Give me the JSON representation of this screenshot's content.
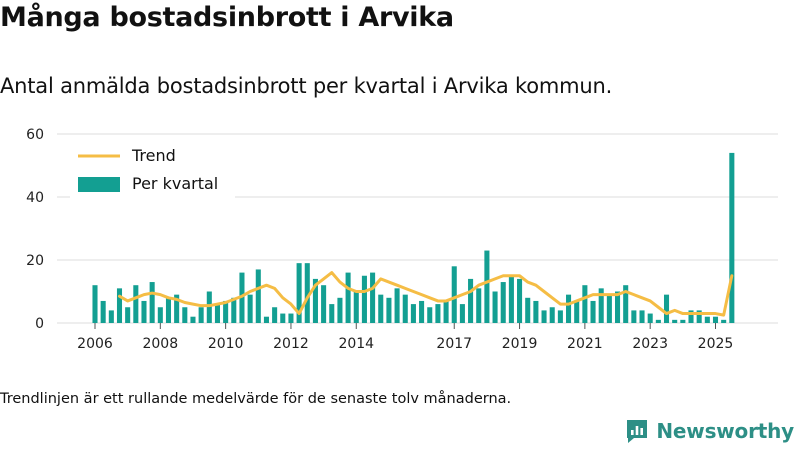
{
  "title": "Många bostadsinbrott i Arvika",
  "subtitle": "Antal anmälda bostadsinbrott per kvartal i Arvika kommun.",
  "note": "Trendlinjen är ett rullande medelvärde för de senaste tolv månaderna.",
  "brand": "Newsworthy",
  "colors": {
    "bar": "#139f92",
    "trend": "#f5bd45",
    "grid": "#dddddd",
    "brand": "#2d8f86"
  },
  "chart_data": {
    "type": "bar",
    "title": "Antal anmälda bostadsinbrott per kvartal i Arvika kommun.",
    "xlabel": "",
    "ylabel": "",
    "ylim": [
      0,
      60
    ],
    "yticks": [
      0,
      20,
      40,
      60
    ],
    "xticks": [
      "2006",
      "2008",
      "2010",
      "2012",
      "2014",
      "2017",
      "2019",
      "2021",
      "2023",
      "2025"
    ],
    "legend": {
      "position": "top-left",
      "entries": [
        "Trend",
        "Per kvartal"
      ]
    },
    "x_start": 2006.0,
    "step": 0.25,
    "series": [
      {
        "name": "Per kvartal",
        "type": "bar",
        "values": [
          12,
          7,
          4,
          11,
          5,
          12,
          7,
          13,
          5,
          8,
          9,
          5,
          2,
          5,
          10,
          6,
          7,
          8,
          16,
          9,
          17,
          2,
          5,
          3,
          3,
          19,
          19,
          14,
          12,
          6,
          8,
          16,
          10,
          15,
          16,
          9,
          8,
          11,
          9,
          6,
          7,
          5,
          6,
          7,
          18,
          6,
          14,
          11,
          23,
          10,
          13,
          15,
          14,
          8,
          7,
          4,
          5,
          4,
          9,
          7,
          12,
          7,
          11,
          9,
          10,
          12,
          4,
          4,
          3,
          1,
          9,
          1,
          1,
          4,
          4,
          2,
          2,
          1,
          54
        ]
      },
      {
        "name": "Trend",
        "type": "line",
        "values": [
          null,
          null,
          null,
          8.5,
          7,
          8,
          9,
          9.5,
          9,
          8,
          7.5,
          6.5,
          6,
          5.5,
          5.5,
          6,
          6.5,
          7.5,
          8.5,
          10,
          11,
          12,
          11,
          8,
          6,
          3,
          8,
          12,
          14,
          16,
          13,
          11,
          10,
          10,
          11,
          14,
          13,
          12,
          11,
          10,
          9,
          8,
          7,
          7,
          8,
          9,
          10,
          12,
          13,
          14,
          15,
          15,
          15,
          13,
          12,
          10,
          8,
          6,
          6,
          7,
          8,
          9,
          9,
          9,
          9,
          10,
          9,
          8,
          7,
          5,
          3,
          4,
          3,
          3,
          3,
          3,
          3,
          2.5,
          15
        ]
      }
    ]
  }
}
